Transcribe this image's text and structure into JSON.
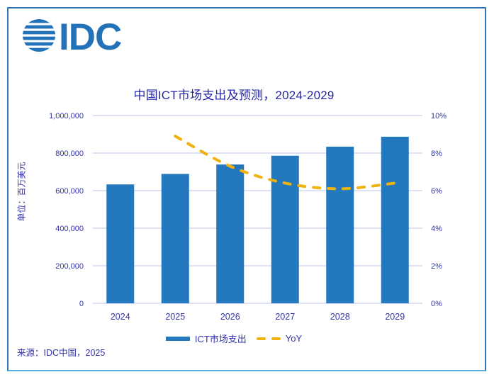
{
  "logo": {
    "text": "IDC"
  },
  "chart_data": {
    "type": "combo-bar-line",
    "title": "中国ICT市场支出及预测，2024-2029",
    "categories": [
      "2024",
      "2025",
      "2026",
      "2027",
      "2028",
      "2029"
    ],
    "series": [
      {
        "name": "ICT市场支出",
        "type": "bar",
        "axis": "left",
        "color": "#2478BD",
        "values": [
          633000,
          689000,
          739000,
          786000,
          834000,
          887000
        ]
      },
      {
        "name": "YoY",
        "type": "line",
        "axis": "right",
        "color": "#EFB211",
        "dashed": true,
        "values": [
          null,
          8.9,
          7.3,
          6.4,
          6.1,
          6.4
        ]
      }
    ],
    "left_axis": {
      "label": "单位：百万美元",
      "min": 0,
      "max": 1000000,
      "ticks": [
        "0",
        "200,000",
        "400,000",
        "600,000",
        "800,000",
        "1,000,000"
      ]
    },
    "right_axis": {
      "min": 0,
      "max": 10,
      "ticks": [
        "0%",
        "2%",
        "4%",
        "6%",
        "8%",
        "10%"
      ]
    },
    "grid": true,
    "legend_position": "bottom"
  },
  "source": "来源：IDC中国，2025",
  "colors": {
    "bar": "#2478BD",
    "line": "#EFB211",
    "grid": "#CBCDEC",
    "text": "#3434AA",
    "title": "#2626A6",
    "border": "#2E75B6",
    "border_bottom": "#58B2E6",
    "logo": "#2272B9"
  }
}
